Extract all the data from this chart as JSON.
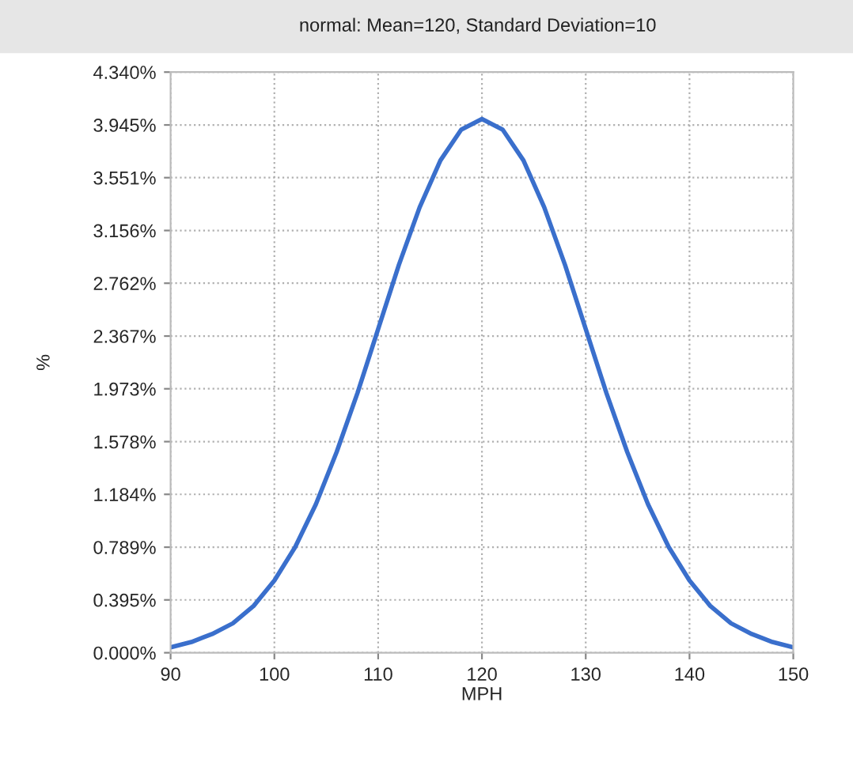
{
  "chart_data": {
    "type": "line",
    "title": "normal: Mean=120, Standard Deviation=10",
    "xlabel": "MPH",
    "ylabel": "%",
    "x": [
      90,
      92,
      94,
      96,
      98,
      100,
      102,
      104,
      106,
      108,
      110,
      112,
      114,
      116,
      118,
      120,
      122,
      124,
      126,
      128,
      130,
      132,
      134,
      136,
      138,
      140,
      142,
      144,
      146,
      148,
      150
    ],
    "series": [
      {
        "color": "#3a6fcc",
        "values": [
          0.04,
          0.08,
          0.14,
          0.22,
          0.35,
          0.54,
          0.79,
          1.11,
          1.5,
          1.94,
          2.42,
          2.9,
          3.33,
          3.68,
          3.91,
          3.99,
          3.91,
          3.68,
          3.33,
          2.9,
          2.42,
          1.94,
          1.5,
          1.11,
          0.79,
          0.54,
          0.35,
          0.22,
          0.14,
          0.08,
          0.04
        ]
      }
    ],
    "xlim": [
      90,
      150
    ],
    "ylim": [
      0,
      4.34
    ],
    "xticks": [
      90,
      100,
      110,
      120,
      130,
      140,
      150
    ],
    "yticks": [
      {
        "value": 0,
        "label": "0.000%"
      },
      {
        "value": 0.395,
        "label": "0.395%"
      },
      {
        "value": 0.789,
        "label": "0.789%"
      },
      {
        "value": 1.184,
        "label": "1.184%"
      },
      {
        "value": 1.578,
        "label": "1.578%"
      },
      {
        "value": 1.973,
        "label": "1.973%"
      },
      {
        "value": 2.367,
        "label": "2.367%"
      },
      {
        "value": 2.762,
        "label": "2.762%"
      },
      {
        "value": 3.156,
        "label": "3.156%"
      },
      {
        "value": 3.551,
        "label": "3.551%"
      },
      {
        "value": 3.945,
        "label": "3.945%"
      },
      {
        "value": 4.34,
        "label": "4.340%"
      }
    ],
    "grid": true,
    "marker": "none",
    "line_style": "solid",
    "legend": false
  }
}
